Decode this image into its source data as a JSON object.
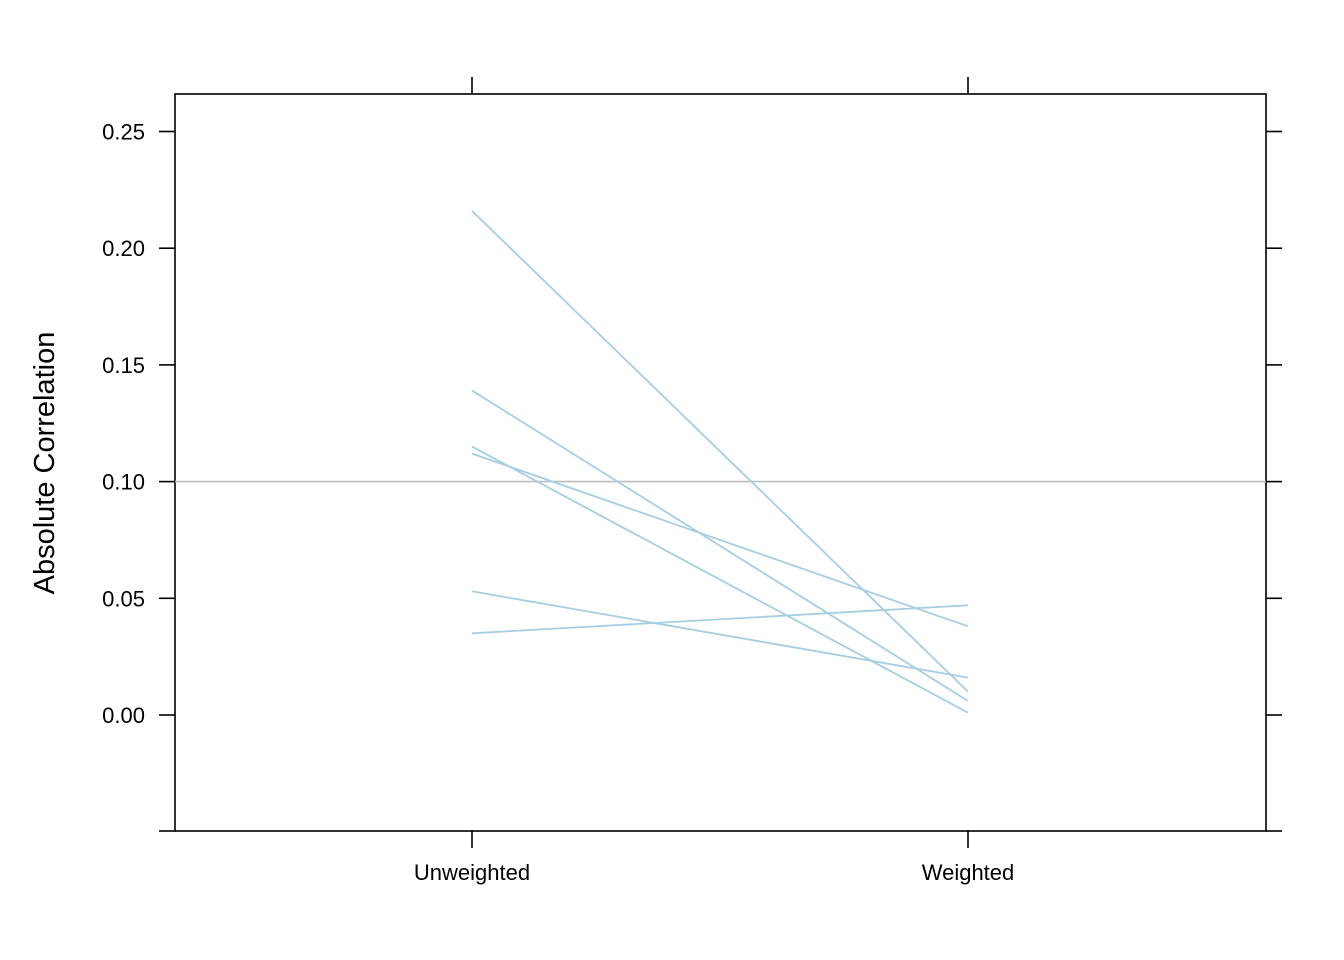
{
  "chart_data": {
    "type": "line",
    "ylabel": "Absolute Correlation",
    "categories": [
      "Unweighted",
      "Weighted"
    ],
    "y_ticks": [
      "0.00",
      "0.05",
      "0.10",
      "0.15",
      "0.20",
      "0.25"
    ],
    "ylim": [
      -0.05,
      0.265
    ],
    "reference_line": {
      "y": 0.1,
      "color": "#bebebe"
    },
    "series_color": "#a6cee3",
    "grid": false,
    "legend": "none",
    "series": [
      {
        "values": [
          0.216,
          0.01
        ]
      },
      {
        "values": [
          0.139,
          0.006
        ]
      },
      {
        "values": [
          0.115,
          0.001
        ]
      },
      {
        "values": [
          0.112,
          0.038
        ]
      },
      {
        "values": [
          0.053,
          0.016
        ]
      },
      {
        "values": [
          0.035,
          0.047
        ]
      }
    ]
  }
}
